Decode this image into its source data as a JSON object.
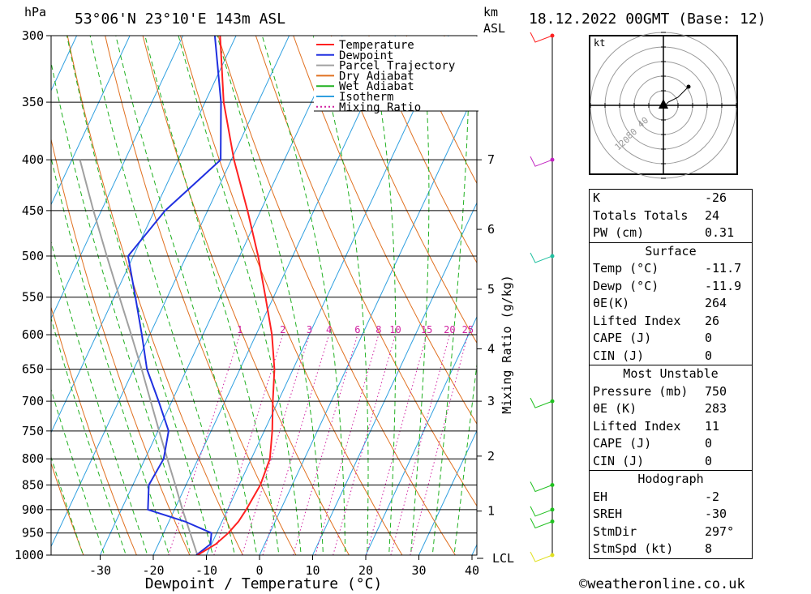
{
  "header": {
    "location": "53°06'N  23°10'E  143m  ASL",
    "datetime": "18.12.2022  00GMT  (Base: 12)",
    "pressure_unit": "hPa",
    "km_label": "km",
    "asl_label": "ASL"
  },
  "chart_data": {
    "type": "line",
    "title": "53°06'N  23°10'E  143m  ASL",
    "xlabel": "Dewpoint / Temperature (°C)",
    "ylabel": "hPa",
    "right_label": "Mixing Ratio (g/kg)",
    "xlim": [
      -40,
      40
    ],
    "ylim": [
      1000,
      300
    ],
    "y_scale": "log",
    "skew": true,
    "x_ticks": [
      -30,
      -20,
      -10,
      0,
      10,
      20,
      30,
      40
    ],
    "pressure_levels": [
      300,
      350,
      400,
      450,
      500,
      550,
      600,
      650,
      700,
      750,
      800,
      850,
      900,
      950,
      1000
    ],
    "km_ticks": [
      {
        "label": "7",
        "p": 400
      },
      {
        "label": "6",
        "p": 470
      },
      {
        "label": "5",
        "p": 540
      },
      {
        "label": "4",
        "p": 620
      },
      {
        "label": "3",
        "p": 700
      },
      {
        "label": "2",
        "p": 795
      },
      {
        "label": "1",
        "p": 903
      }
    ],
    "lcl_label": "LCL",
    "mixing_ratio_labels": [
      "1",
      "2",
      "3",
      "4",
      "6",
      "8",
      "10",
      "15",
      "20",
      "25"
    ],
    "series": [
      {
        "name": "Temperature",
        "color": "#ff2020",
        "p": [
          1000,
          975,
          950,
          925,
          900,
          850,
          800,
          750,
          700,
          650,
          600,
          550,
          500,
          450,
          400,
          350,
          300
        ],
        "t": [
          -11.7,
          -9.2,
          -7.8,
          -6.9,
          -6.5,
          -6.0,
          -6.5,
          -8.5,
          -11.0,
          -13.5,
          -17.0,
          -21.5,
          -26.5,
          -32.5,
          -39.5,
          -46.5,
          -53.0
        ]
      },
      {
        "name": "Dewpoint",
        "color": "#2030e0",
        "p": [
          1000,
          975,
          950,
          925,
          900,
          850,
          800,
          750,
          700,
          650,
          600,
          550,
          500,
          450,
          400,
          350,
          300
        ],
        "t": [
          -11.9,
          -10.2,
          -11.0,
          -17.0,
          -25.0,
          -27.0,
          -26.5,
          -28.0,
          -32.5,
          -37.5,
          -41.5,
          -46.0,
          -51.0,
          -48.0,
          -42.0,
          -47.0,
          -54.0
        ]
      },
      {
        "name": "Parcel Trajectory",
        "color": "#a0a0a0",
        "p": [
          1000,
          950,
          900,
          850,
          800,
          750,
          700,
          650,
          600,
          550,
          500,
          450,
          400
        ],
        "t": [
          -11.7,
          -15.0,
          -18.5,
          -22.0,
          -25.8,
          -29.8,
          -34.0,
          -38.5,
          -43.5,
          -49.0,
          -55.0,
          -61.5,
          -68.5
        ]
      }
    ],
    "legend": {
      "placement": "top-center",
      "entries": [
        {
          "label": "Temperature",
          "color": "#ff2020",
          "style": "solid"
        },
        {
          "label": "Dewpoint",
          "color": "#2030e0",
          "style": "solid"
        },
        {
          "label": "Parcel Trajectory",
          "color": "#a0a0a0",
          "style": "solid"
        },
        {
          "label": "Dry Adiabat",
          "color": "#e07020",
          "style": "solid"
        },
        {
          "label": "Wet Adiabat",
          "color": "#20b020",
          "style": "solid"
        },
        {
          "label": "Isotherm",
          "color": "#30a0e0",
          "style": "solid"
        },
        {
          "label": "Mixing Ratio",
          "color": "#d020a0",
          "style": "dotted"
        }
      ]
    },
    "wind_barbs": [
      {
        "p": 300,
        "color": "#ff2020"
      },
      {
        "p": 400,
        "color": "#c020c0"
      },
      {
        "p": 500,
        "color": "#20c0a0"
      },
      {
        "p": 700,
        "color": "#20c020"
      },
      {
        "p": 850,
        "color": "#20c020"
      },
      {
        "p": 900,
        "color": "#20c020"
      },
      {
        "p": 925,
        "color": "#20c020"
      },
      {
        "p": 1000,
        "color": "#e0e020"
      }
    ]
  },
  "hodograph": {
    "unit": "kt",
    "ring_labels": [
      "40",
      "80",
      "120"
    ]
  },
  "stats": {
    "indices": [
      {
        "label": "K",
        "value": "-26"
      },
      {
        "label": "Totals Totals",
        "value": "24"
      },
      {
        "label": "PW (cm)",
        "value": "0.31"
      }
    ],
    "surface": {
      "title": "Surface",
      "rows": [
        {
          "label": "Temp (°C)",
          "value": "-11.7"
        },
        {
          "label": "Dewp (°C)",
          "value": "-11.9"
        },
        {
          "label": "θE(K)",
          "value": "264"
        },
        {
          "label": "Lifted Index",
          "value": "26"
        },
        {
          "label": "CAPE (J)",
          "value": "0"
        },
        {
          "label": "CIN (J)",
          "value": "0"
        }
      ]
    },
    "most_unstable": {
      "title": "Most Unstable",
      "rows": [
        {
          "label": "Pressure (mb)",
          "value": "750"
        },
        {
          "label": "θE (K)",
          "value": "283"
        },
        {
          "label": "Lifted Index",
          "value": "11"
        },
        {
          "label": "CAPE (J)",
          "value": "0"
        },
        {
          "label": "CIN (J)",
          "value": "0"
        }
      ]
    },
    "hodograph": {
      "title": "Hodograph",
      "rows": [
        {
          "label": "EH",
          "value": "-2"
        },
        {
          "label": "SREH",
          "value": "-30"
        },
        {
          "label": "StmDir",
          "value": "297°"
        },
        {
          "label": "StmSpd (kt)",
          "value": "8"
        }
      ]
    }
  },
  "footer": {
    "copyright": "©weatheronline.co.uk"
  }
}
